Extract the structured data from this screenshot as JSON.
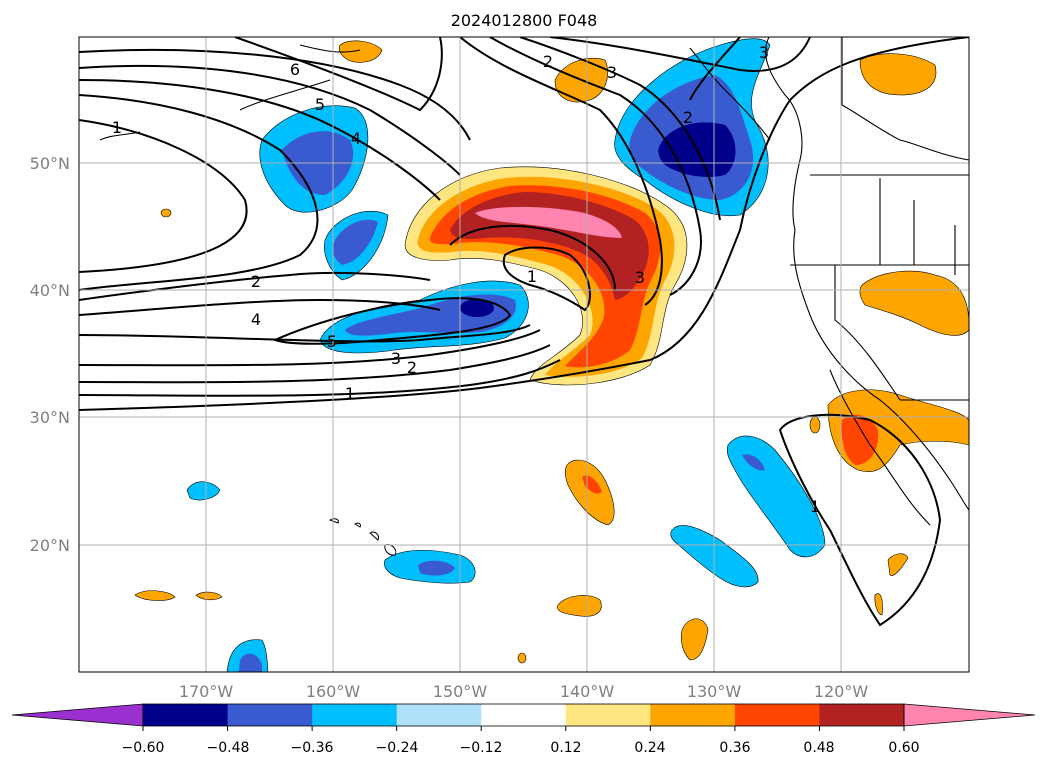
{
  "title": "2024012800 F048",
  "lat_labels": [
    "50°N",
    "40°N",
    "30°N",
    "20°N"
  ],
  "lon_labels": [
    "170°W",
    "160°W",
    "150°W",
    "140°W",
    "130°W",
    "120°W"
  ],
  "contour_labels": [
    "1",
    "6",
    "5",
    "4",
    "2",
    "3",
    "2",
    "3",
    "3",
    "1",
    "2",
    "4",
    "5",
    "3",
    "2",
    "1",
    "1"
  ],
  "colorbar": {
    "ticks": [
      "−0.60",
      "−0.48",
      "−0.36",
      "−0.24",
      "−0.12",
      "0.12",
      "0.24",
      "0.36",
      "0.48",
      "0.60"
    ],
    "colors": [
      "#9b30d0",
      "#00008b",
      "#3a5bd0",
      "#00bfff",
      "#aee0f8",
      "#ffffff",
      "#ffe680",
      "#ffa500",
      "#ff4500",
      "#b22222",
      "#ff85b0"
    ]
  },
  "chart_data": {
    "type": "map",
    "projection": "lat-lon",
    "lon_range": [
      -180,
      -110
    ],
    "lat_range": [
      10,
      60
    ],
    "gridlines": true,
    "colorbar_levels": [
      -0.6,
      -0.48,
      -0.36,
      -0.24,
      -0.12,
      0.12,
      0.24,
      0.36,
      0.48,
      0.6
    ],
    "colorbar_extend": "both"
  }
}
